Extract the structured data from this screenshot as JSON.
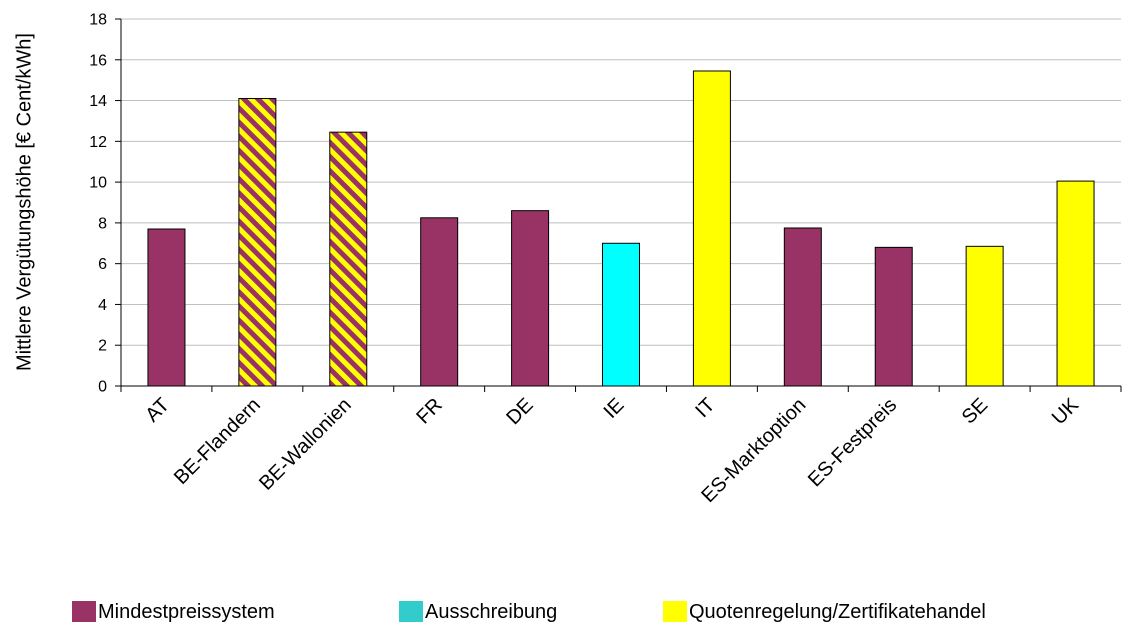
{
  "chart_data": {
    "type": "bar",
    "ylabel": "Mittlere Vergütungshöhe [€ Cent/kWh]",
    "xlabel": "",
    "ylim": [
      0,
      18
    ],
    "yticks": [
      0,
      2,
      4,
      6,
      8,
      10,
      12,
      14,
      16,
      18
    ],
    "grid": true,
    "legend_position": "bottom",
    "categories": [
      "AT",
      "BE-Flandern",
      "BE-Wallonien",
      "FR",
      "DE",
      "IE",
      "IT",
      "ES-Marktoption",
      "ES-Festpreis",
      "SE",
      "UK"
    ],
    "values": [
      7.7,
      14.1,
      12.45,
      8.25,
      8.6,
      7.0,
      15.45,
      7.75,
      6.8,
      6.85,
      10.05
    ],
    "groups": [
      "mindest",
      "mixed",
      "mixed",
      "mindest",
      "mindest",
      "ausschreibung",
      "quote",
      "mindest",
      "mindest",
      "quote",
      "quote"
    ],
    "legend": [
      {
        "key": "mindest",
        "label": "Mindestpreissystem",
        "color": "#993366"
      },
      {
        "key": "ausschreibung",
        "label": "Ausschreibung",
        "color": "#33cccc"
      },
      {
        "key": "quote",
        "label": "Quotenregelung/Zertifikatehandel",
        "color": "#ffff00"
      }
    ],
    "colors": {
      "mindest_bar": "#993366",
      "ausschreibung_bar": "#00ffff",
      "quote_bar": "#ffff00",
      "stripe_a": "#ffff00",
      "stripe_b": "#993366",
      "gridline": "#c0c0c0"
    }
  }
}
